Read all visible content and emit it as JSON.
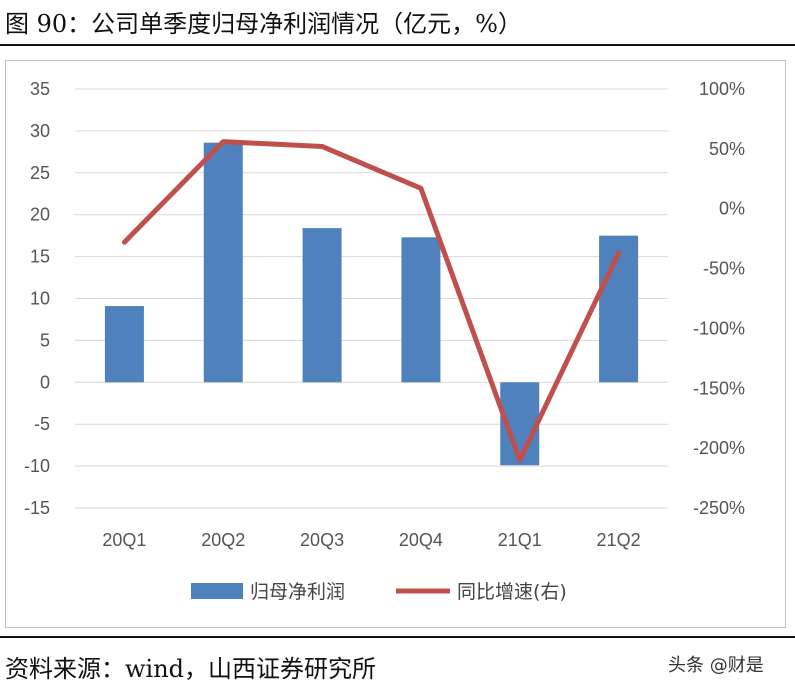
{
  "figure": {
    "title": "图 90：公司单季度归母净利润情况（亿元，%）",
    "source": "资料来源：wind，山西证券研究所",
    "watermark": "头条 @财是"
  },
  "chart_data": {
    "type": "bar",
    "categories": [
      "20Q1",
      "20Q2",
      "20Q3",
      "20Q4",
      "21Q1",
      "21Q2"
    ],
    "series": [
      {
        "name": "归母净利润",
        "type": "bar",
        "axis": "left",
        "color": "#4f81bd",
        "values": [
          9.1,
          28.6,
          18.4,
          17.3,
          -9.9,
          17.5
        ]
      },
      {
        "name": "同比增速(右)",
        "type": "line",
        "axis": "right",
        "color": "#c0504d",
        "values": [
          -28,
          56,
          52,
          17,
          -210,
          -37
        ]
      }
    ],
    "ylim_left": [
      -15,
      35
    ],
    "yticks_left": [
      "35",
      "30",
      "25",
      "20",
      "15",
      "10",
      "5",
      "0",
      "-5",
      "-10",
      "-15"
    ],
    "ylim_right": [
      -250,
      100
    ],
    "yticks_right": [
      "100%",
      "50%",
      "0%",
      "-50%",
      "-100%",
      "-150%",
      "-200%",
      "-250%"
    ],
    "grid": true,
    "legend": "bottom"
  }
}
